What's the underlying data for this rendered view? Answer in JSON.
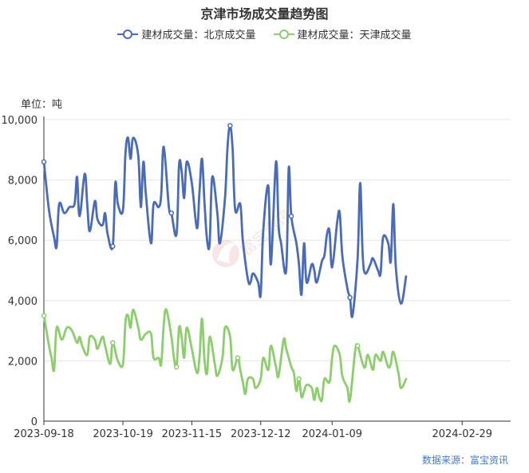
{
  "title": "京津市场成交量趋势图",
  "y_unit": "单位：吨",
  "source": "数据来源：富宝资讯",
  "watermark": "富宝资讯",
  "colors": {
    "beijing": "#4a6bb8",
    "tianjin": "#8cce6c",
    "grid": "#e6e6e6",
    "axis": "#333333"
  },
  "chart_data": {
    "type": "line",
    "title": "京津市场成交量趋势图",
    "ylabel": "单位：吨",
    "ylim": [
      0,
      10000
    ],
    "yticks": [
      0,
      2000,
      4000,
      6000,
      8000,
      10000
    ],
    "ytick_labels": [
      "0",
      "2,000",
      "4,000",
      "6,000",
      "8,000",
      "10,000"
    ],
    "xlim": [
      "2023-09-18",
      "2024-03-19"
    ],
    "xticks": [
      "2023-09-18",
      "2023-10-19",
      "2023-11-15",
      "2023-12-12",
      "2024-01-09",
      "2024-02-29"
    ],
    "grid": true,
    "legend_position": "top-center",
    "series": [
      {
        "name": "建材成交量：北京成交量",
        "color": "#4a6bb8",
        "points": [
          [
            "2023-09-18",
            8600
          ],
          [
            "2023-09-20",
            7000
          ],
          [
            "2023-09-22",
            6100
          ],
          [
            "2023-09-23",
            5800
          ],
          [
            "2023-09-24",
            7200
          ],
          [
            "2023-09-26",
            6900
          ],
          [
            "2023-09-28",
            7100
          ],
          [
            "2023-09-30",
            7200
          ],
          [
            "2023-10-01",
            8100
          ],
          [
            "2023-10-02",
            6800
          ],
          [
            "2023-10-04",
            8200
          ],
          [
            "2023-10-05",
            7200
          ],
          [
            "2023-10-06",
            6300
          ],
          [
            "2023-10-08",
            7300
          ],
          [
            "2023-10-09",
            6700
          ],
          [
            "2023-10-11",
            6500
          ],
          [
            "2023-10-12",
            6900
          ],
          [
            "2023-10-13",
            6200
          ],
          [
            "2023-10-15",
            5800
          ],
          [
            "2023-10-16",
            7900
          ],
          [
            "2023-10-17",
            7200
          ],
          [
            "2023-10-19",
            7000
          ],
          [
            "2023-10-20",
            8900
          ],
          [
            "2023-10-21",
            9400
          ],
          [
            "2023-10-22",
            8700
          ],
          [
            "2023-10-23",
            9400
          ],
          [
            "2023-10-25",
            8800
          ],
          [
            "2023-10-26",
            7100
          ],
          [
            "2023-10-27",
            8600
          ],
          [
            "2023-10-28",
            7500
          ],
          [
            "2023-10-30",
            5900
          ],
          [
            "2023-10-31",
            7200
          ],
          [
            "2023-11-02",
            7100
          ],
          [
            "2023-11-03",
            7500
          ],
          [
            "2023-11-04",
            9100
          ],
          [
            "2023-11-06",
            7100
          ],
          [
            "2023-11-07",
            6900
          ],
          [
            "2023-11-09",
            6200
          ],
          [
            "2023-11-10",
            8500
          ],
          [
            "2023-11-11",
            8300
          ],
          [
            "2023-11-12",
            7400
          ],
          [
            "2023-11-13",
            8600
          ],
          [
            "2023-11-15",
            7900
          ],
          [
            "2023-11-17",
            6400
          ],
          [
            "2023-11-18",
            7600
          ],
          [
            "2023-11-19",
            8700
          ],
          [
            "2023-11-20",
            7200
          ],
          [
            "2023-11-21",
            6000
          ],
          [
            "2023-11-22",
            5900
          ],
          [
            "2023-11-23",
            8100
          ],
          [
            "2023-11-25",
            6900
          ],
          [
            "2023-11-26",
            5900
          ],
          [
            "2023-11-28",
            7400
          ],
          [
            "2023-11-29",
            9100
          ],
          [
            "2023-11-30",
            9800
          ],
          [
            "2023-12-01",
            9000
          ],
          [
            "2023-12-02",
            7000
          ],
          [
            "2023-12-04",
            7200
          ],
          [
            "2023-12-05",
            6000
          ],
          [
            "2023-12-07",
            4700
          ],
          [
            "2023-12-08",
            4600
          ],
          [
            "2023-12-09",
            4900
          ],
          [
            "2023-12-11",
            4600
          ],
          [
            "2023-12-12",
            4200
          ],
          [
            "2023-12-13",
            6300
          ],
          [
            "2023-12-15",
            7800
          ],
          [
            "2023-12-16",
            5200
          ],
          [
            "2023-12-18",
            8600
          ],
          [
            "2023-12-19",
            6500
          ],
          [
            "2023-12-20",
            5900
          ],
          [
            "2023-12-22",
            5000
          ],
          [
            "2023-12-23",
            8400
          ],
          [
            "2023-12-24",
            6800
          ],
          [
            "2023-12-26",
            5900
          ],
          [
            "2023-12-27",
            5200
          ],
          [
            "2023-12-28",
            4200
          ],
          [
            "2023-12-29",
            5900
          ],
          [
            "2023-12-30",
            4600
          ],
          [
            "2024-01-01",
            5200
          ],
          [
            "2024-01-02",
            5000
          ],
          [
            "2024-01-03",
            4600
          ],
          [
            "2024-01-05",
            5300
          ],
          [
            "2024-01-06",
            5500
          ],
          [
            "2024-01-07",
            6200
          ],
          [
            "2024-01-08",
            6300
          ],
          [
            "2024-01-09",
            5100
          ],
          [
            "2024-01-11",
            6600
          ],
          [
            "2024-01-12",
            6900
          ],
          [
            "2024-01-13",
            5500
          ],
          [
            "2024-01-15",
            4400
          ],
          [
            "2024-01-16",
            4100
          ],
          [
            "2024-01-17",
            3500
          ],
          [
            "2024-01-19",
            5400
          ],
          [
            "2024-01-20",
            7900
          ],
          [
            "2024-01-21",
            5500
          ],
          [
            "2024-01-22",
            4900
          ],
          [
            "2024-01-24",
            5200
          ],
          [
            "2024-01-25",
            5400
          ],
          [
            "2024-01-27",
            5000
          ],
          [
            "2024-01-28",
            4900
          ],
          [
            "2024-01-29",
            6100
          ],
          [
            "2024-01-31",
            5900
          ],
          [
            "2024-02-01",
            5300
          ],
          [
            "2024-02-02",
            7200
          ],
          [
            "2024-02-03",
            5100
          ],
          [
            "2024-02-05",
            3900
          ],
          [
            "2024-02-07",
            4800
          ]
        ]
      },
      {
        "name": "建材成交量：天津成交量",
        "color": "#8cce6c",
        "points": [
          [
            "2023-09-18",
            3500
          ],
          [
            "2023-09-20",
            2500
          ],
          [
            "2023-09-21",
            2100
          ],
          [
            "2023-09-22",
            1700
          ],
          [
            "2023-09-23",
            3100
          ],
          [
            "2023-09-25",
            2700
          ],
          [
            "2023-09-27",
            3100
          ],
          [
            "2023-09-29",
            3000
          ],
          [
            "2023-10-01",
            2600
          ],
          [
            "2023-10-02",
            2800
          ],
          [
            "2023-10-03",
            2500
          ],
          [
            "2023-10-05",
            2200
          ],
          [
            "2023-10-06",
            2800
          ],
          [
            "2023-10-08",
            2700
          ],
          [
            "2023-10-09",
            2400
          ],
          [
            "2023-10-11",
            2800
          ],
          [
            "2023-10-12",
            2500
          ],
          [
            "2023-10-14",
            1900
          ],
          [
            "2023-10-15",
            2600
          ],
          [
            "2023-10-17",
            2000
          ],
          [
            "2023-10-19",
            1900
          ],
          [
            "2023-10-20",
            3300
          ],
          [
            "2023-10-21",
            3500
          ],
          [
            "2023-10-22",
            3100
          ],
          [
            "2023-10-23",
            3700
          ],
          [
            "2023-10-25",
            3100
          ],
          [
            "2023-10-26",
            2700
          ],
          [
            "2023-10-28",
            2900
          ],
          [
            "2023-10-30",
            2900
          ],
          [
            "2023-10-31",
            2100
          ],
          [
            "2023-11-02",
            2100
          ],
          [
            "2023-11-03",
            1900
          ],
          [
            "2023-11-04",
            3200
          ],
          [
            "2023-11-05",
            3700
          ],
          [
            "2023-11-07",
            2800
          ],
          [
            "2023-11-08",
            2100
          ],
          [
            "2023-11-09",
            1800
          ],
          [
            "2023-11-10",
            3100
          ],
          [
            "2023-11-11",
            2800
          ],
          [
            "2023-11-12",
            2100
          ],
          [
            "2023-11-13",
            3100
          ],
          [
            "2023-11-15",
            2400
          ],
          [
            "2023-11-17",
            1600
          ],
          [
            "2023-11-18",
            2100
          ],
          [
            "2023-11-19",
            3400
          ],
          [
            "2023-11-20",
            2000
          ],
          [
            "2023-11-21",
            1600
          ],
          [
            "2023-11-22",
            2800
          ],
          [
            "2023-11-24",
            1900
          ],
          [
            "2023-11-25",
            1500
          ],
          [
            "2023-11-27",
            2100
          ],
          [
            "2023-11-28",
            3100
          ],
          [
            "2023-11-30",
            2800
          ],
          [
            "2023-12-01",
            1700
          ],
          [
            "2023-12-03",
            2100
          ],
          [
            "2023-12-04",
            1700
          ],
          [
            "2023-12-05",
            1300
          ],
          [
            "2023-12-06",
            900
          ],
          [
            "2023-12-07",
            1400
          ],
          [
            "2023-12-09",
            1400
          ],
          [
            "2023-12-10",
            1100
          ],
          [
            "2023-12-12",
            1400
          ],
          [
            "2023-12-13",
            2100
          ],
          [
            "2023-12-15",
            1700
          ],
          [
            "2023-12-16",
            2500
          ],
          [
            "2023-12-18",
            1800
          ],
          [
            "2023-12-19",
            1500
          ],
          [
            "2023-12-21",
            2700
          ],
          [
            "2023-12-22",
            2400
          ],
          [
            "2023-12-24",
            1800
          ],
          [
            "2023-12-25",
            1600
          ],
          [
            "2023-12-26",
            1000
          ],
          [
            "2023-12-27",
            1400
          ],
          [
            "2023-12-28",
            800
          ],
          [
            "2023-12-29",
            1000
          ],
          [
            "2023-12-30",
            1200
          ],
          [
            "2024-01-01",
            1100
          ],
          [
            "2024-01-02",
            700
          ],
          [
            "2024-01-03",
            1100
          ],
          [
            "2024-01-04",
            800
          ],
          [
            "2024-01-05",
            700
          ],
          [
            "2024-01-06",
            1400
          ],
          [
            "2024-01-08",
            1300
          ],
          [
            "2024-01-09",
            2100
          ],
          [
            "2024-01-10",
            2500
          ],
          [
            "2024-01-12",
            2200
          ],
          [
            "2024-01-13",
            1500
          ],
          [
            "2024-01-15",
            1100
          ],
          [
            "2024-01-16",
            700
          ],
          [
            "2024-01-18",
            2300
          ],
          [
            "2024-01-19",
            2500
          ],
          [
            "2024-01-21",
            1900
          ],
          [
            "2024-01-22",
            1800
          ],
          [
            "2024-01-23",
            2200
          ],
          [
            "2024-01-25",
            1700
          ],
          [
            "2024-01-26",
            2200
          ],
          [
            "2024-01-28",
            2000
          ],
          [
            "2024-01-29",
            2300
          ],
          [
            "2024-01-31",
            1800
          ],
          [
            "2024-02-01",
            1900
          ],
          [
            "2024-02-02",
            2300
          ],
          [
            "2024-02-04",
            1600
          ],
          [
            "2024-02-05",
            1100
          ],
          [
            "2024-02-07",
            1400
          ]
        ]
      }
    ]
  }
}
